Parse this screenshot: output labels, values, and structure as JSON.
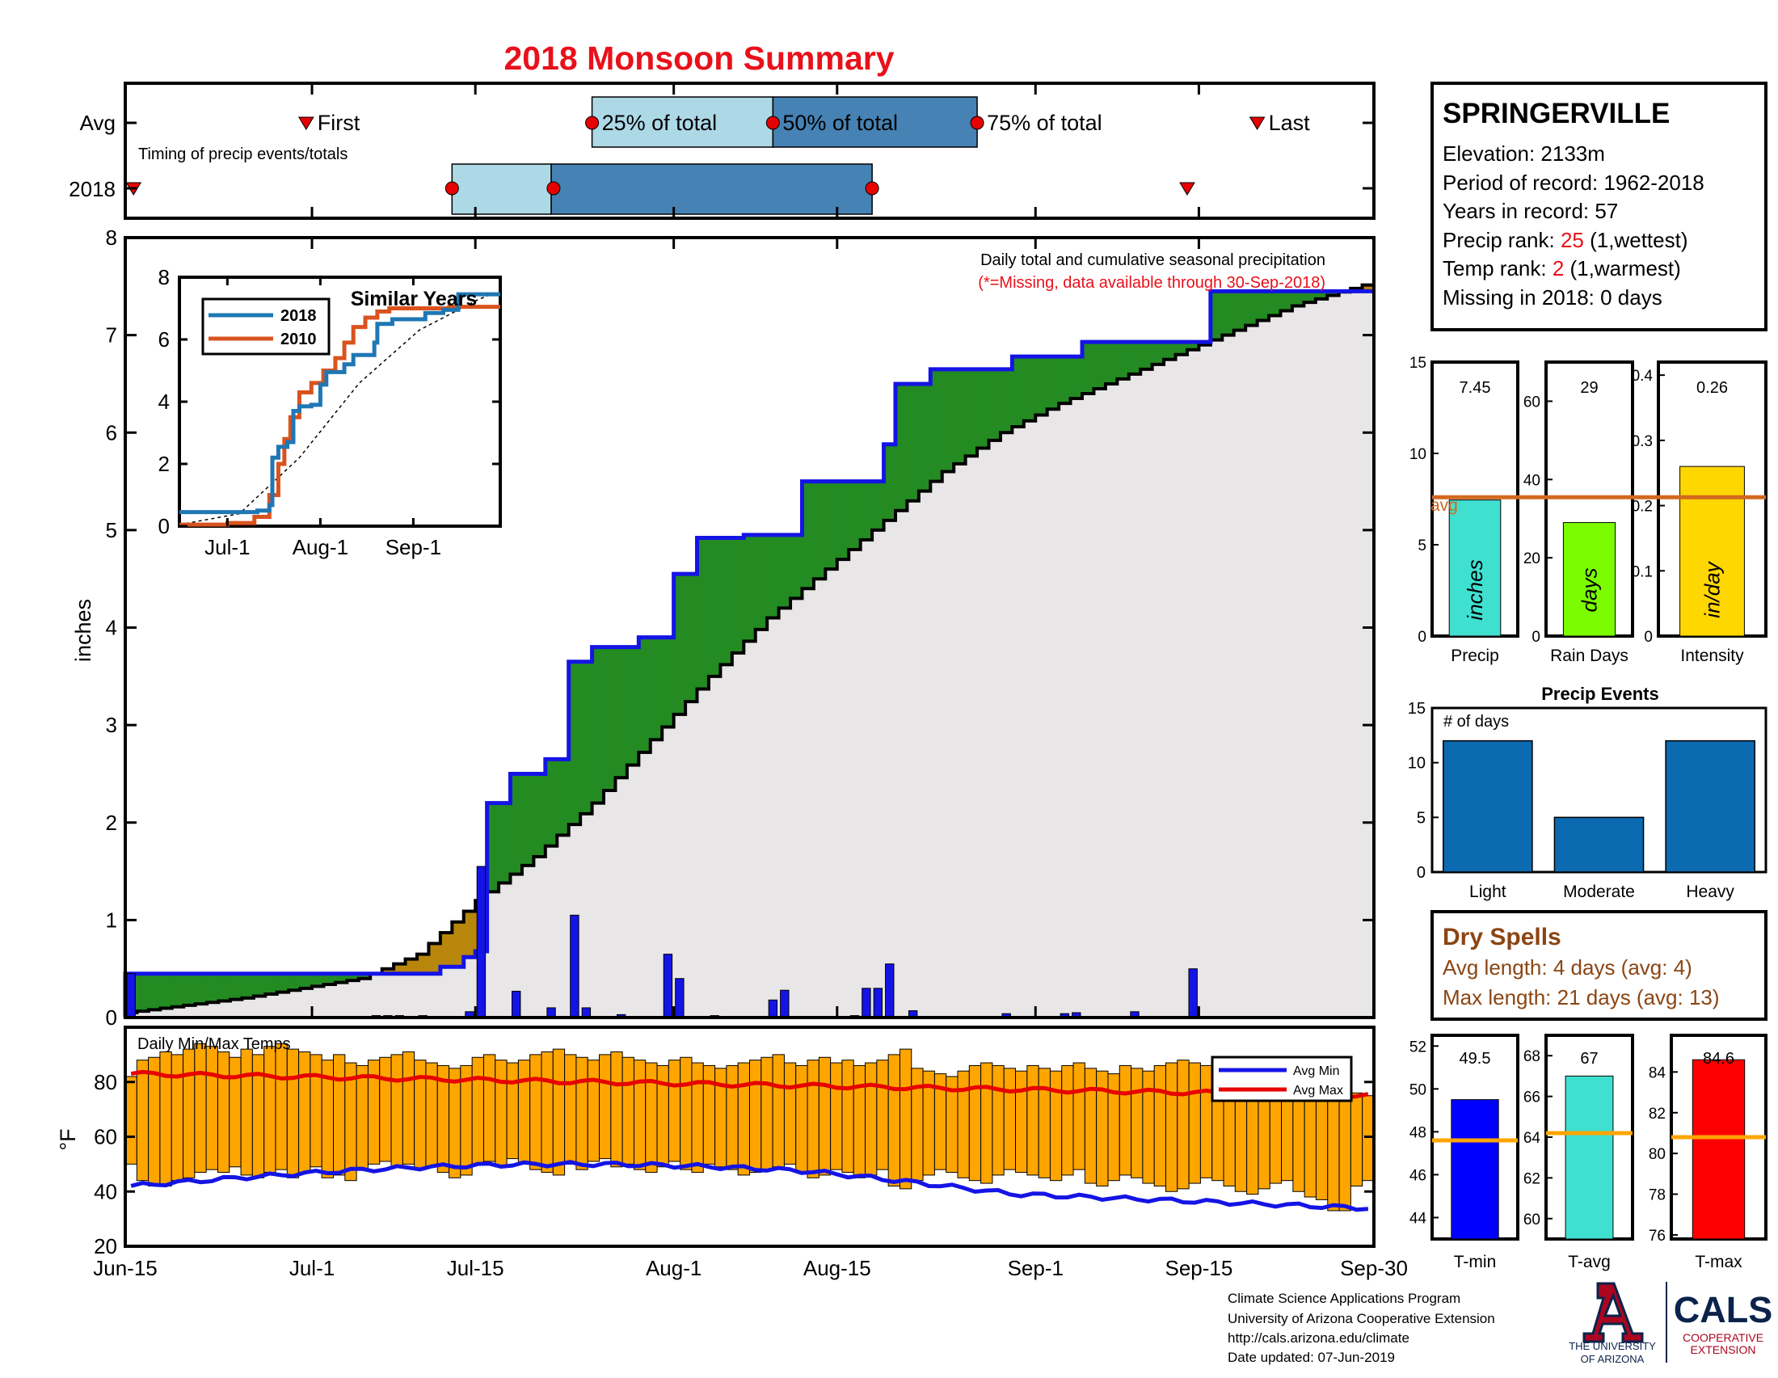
{
  "title": "2018 Monsoon Summary",
  "colors": {
    "title_red": "#e8111b",
    "wet_green": "#238b22",
    "dry_brown": "#b8860b",
    "cum_blue": "#1414e6",
    "avg_fill": "#e8e6e6",
    "timing_light": "#add8e6",
    "timing_dark": "#4682b4",
    "temp_bar": "#ffa500",
    "avg_red": "#e60000",
    "avg_orange": "#d2691e",
    "events_blue": "#0b6ab0"
  },
  "timing_panel": {
    "row_labels": [
      "Avg",
      "2018"
    ],
    "note": "Timing of precip events/totals",
    "markers": {
      "first": "First",
      "p25": "25% of total",
      "p50": "50% of total",
      "p75": "75% of total",
      "last": "Last"
    },
    "avg_days": {
      "first": 15.5,
      "p25": 40,
      "p50": 55.5,
      "p75": 73,
      "last": 97
    },
    "y2018_days": {
      "first": 0.5,
      "box_start": 28,
      "p25": 36.5,
      "p50": 36.7,
      "box_end": 64,
      "p75": 64,
      "last": 91
    }
  },
  "station": {
    "name": "SPRINGERVILLE",
    "elevation": "Elevation: 2133m",
    "period": "Period of record: 1962-2018",
    "years": "Years in record: 57",
    "precip_rank_label": "Precip rank:",
    "precip_rank_value": "25",
    "precip_rank_note": "(1,wettest)",
    "temp_rank_label": "Temp rank:",
    "temp_rank_value": "2",
    "temp_rank_note": "(1,warmest)",
    "missing": "Missing in 2018: 0 days"
  },
  "main_chart": {
    "ylabel": "inches",
    "yticks": [
      "0",
      "1",
      "2",
      "3",
      "4",
      "5",
      "6",
      "7",
      "8"
    ],
    "note1": "Daily total and cumulative seasonal precipitation",
    "note2": "(*=Missing, data available through 30-Sep-2018)",
    "xticks": [
      "Jun-15",
      "Jul-1",
      "Jul-15",
      "Aug-1",
      "Aug-15",
      "Sep-1",
      "Sep-15",
      "Sep-30"
    ],
    "xtick_days": [
      0,
      16,
      30,
      47,
      61,
      78,
      92,
      107
    ]
  },
  "inset": {
    "title": "Similar Years",
    "legend": [
      "2018",
      "2010"
    ],
    "yticks": [
      "0",
      "2",
      "4",
      "6",
      "8"
    ],
    "xticks": [
      "Jul-1",
      "Aug-1",
      "Sep-1"
    ],
    "colors": {
      "y2018": "#1f77b4",
      "y2010": "#d9531e"
    }
  },
  "temp_chart": {
    "label": "Daily Min/Max Temps",
    "ylabel": "°F",
    "yticks": [
      "20",
      "40",
      "60",
      "80"
    ],
    "legend": [
      "Avg Min",
      "Avg Max"
    ]
  },
  "summary_bars": {
    "precip": {
      "label": "Precip",
      "value": 7.45,
      "display": "7.45",
      "avg": 7.6,
      "ymax": 15,
      "unit": "inches",
      "color": "#40e0d0",
      "yticks": [
        "0",
        "5",
        "10",
        "15"
      ],
      "avg_label": "avg"
    },
    "rain_days": {
      "label": "Rain Days",
      "value": 29,
      "display": "29",
      "avg": 35.5,
      "ymax": 70,
      "unit": "days",
      "color": "#7cfc00",
      "yticks": [
        "0",
        "20",
        "40",
        "60"
      ]
    },
    "intensity": {
      "label": "Intensity",
      "value": 0.26,
      "display": "0.26",
      "avg": 0.215,
      "ymax": 0.42,
      "unit": "in/day",
      "color": "#ffd700",
      "yticks": [
        "0",
        "0.1",
        "0.2",
        "0.3",
        "0.4"
      ]
    }
  },
  "events": {
    "title": "Precip Events",
    "note": "# of days",
    "categories": [
      "Light",
      "Moderate",
      "Heavy"
    ],
    "values": [
      12,
      5,
      12
    ],
    "yticks": [
      "0",
      "5",
      "10",
      "15"
    ]
  },
  "dry_spells": {
    "title": "Dry Spells",
    "avg_line": "Avg length: 4 days (avg: 4)",
    "max_line": "Max length: 21 days (avg: 13)"
  },
  "temp_bars": {
    "tmin": {
      "label": "T-min",
      "value": 49.5,
      "display": "49.5",
      "avg": 47.6,
      "ymin": 43,
      "ymax": 52.5,
      "yticks": [
        "44",
        "46",
        "48",
        "50",
        "52"
      ],
      "color": "#0000ff"
    },
    "tavg": {
      "label": "T-avg",
      "value": 67,
      "display": "67",
      "avg": 64.2,
      "ymin": 59,
      "ymax": 69,
      "yticks": [
        "60",
        "62",
        "64",
        "66",
        "68"
      ],
      "color": "#40e0d0"
    },
    "tmax": {
      "label": "T-max",
      "value": 84.6,
      "display": "84.6",
      "avg": 80.8,
      "ymin": 75.8,
      "ymax": 85.8,
      "yticks": [
        "76",
        "78",
        "80",
        "82",
        "84"
      ],
      "color": "#ff0000"
    }
  },
  "footer": {
    "line1": "Climate Science Applications Program",
    "line2": "University of Arizona Cooperative Extension",
    "line3": "http://cals.arizona.edu/climate",
    "line4": " Date updated: 07-Jun-2019",
    "ua_text1": "THE UNIVERSITY",
    "ua_text2": "OF ARIZONA",
    "cals": "CALS",
    "cals_sub1": "COOPERATIVE",
    "cals_sub2": "EXTENSION"
  },
  "chart_data": [
    {
      "type": "area",
      "title": "Daily total and cumulative seasonal precipitation",
      "ylabel": "inches",
      "ylim": [
        0,
        8
      ],
      "x_range": [
        "Jun-15",
        "Sep-30"
      ],
      "series": [
        {
          "name": "",
          "kind": "cumulative_2018",
          "x_days": [
            0,
            2,
            26,
            27,
            29,
            30,
            31,
            33,
            36,
            38,
            40,
            44,
            47,
            49,
            53,
            58,
            64,
            65,
            66,
            69,
            71,
            75,
            76,
            82,
            86,
            88,
            92,
            93,
            96,
            107
          ],
          "y": [
            0.45,
            0.45,
            0.45,
            0.52,
            0.62,
            0.68,
            2.2,
            2.5,
            2.65,
            3.65,
            3.8,
            3.9,
            4.55,
            4.92,
            4.95,
            5.5,
            5.5,
            5.88,
            6.5,
            6.65,
            6.65,
            6.65,
            6.78,
            6.93,
            6.93,
            6.93,
            6.93,
            7.45,
            7.45,
            7.45
          ]
        },
        {
          "name": "",
          "kind": "average",
          "x_days": [
            0,
            10,
            20,
            25,
            30,
            35,
            40,
            45,
            50,
            55,
            60,
            65,
            70,
            75,
            80,
            85,
            90,
            95,
            100,
            107
          ],
          "y": [
            0.05,
            0.2,
            0.4,
            0.65,
            1.2,
            1.65,
            2.2,
            2.85,
            3.5,
            4.1,
            4.6,
            5.1,
            5.6,
            6.0,
            6.3,
            6.55,
            6.8,
            7.05,
            7.3,
            7.55
          ]
        },
        {
          "name": "",
          "kind": "daily_precip",
          "x_days": [
            0,
            21,
            22,
            23,
            25,
            29,
            30,
            33,
            36,
            38,
            39,
            42,
            46,
            47,
            50,
            55,
            56,
            62,
            63,
            64,
            65,
            67,
            75,
            80,
            81,
            86,
            91
          ],
          "y": [
            0.45,
            0.02,
            0.02,
            0.02,
            0.02,
            0.06,
            1.55,
            0.27,
            0.1,
            1.05,
            0.1,
            0.03,
            0.65,
            0.4,
            0.02,
            0.18,
            0.28,
            0.02,
            0.3,
            0.3,
            0.55,
            0.07,
            0.04,
            0.04,
            0.05,
            0.06,
            0.5
          ]
        }
      ]
    },
    {
      "type": "line",
      "title": "Similar Years",
      "xticks": [
        "Jul-1",
        "Aug-1",
        "Sep-1"
      ],
      "ylim": [
        0,
        8
      ],
      "series": [
        {
          "name": "2018",
          "x_days": [
            0,
            16,
            26,
            30,
            31,
            33,
            36,
            38,
            40,
            44,
            47,
            49,
            55,
            58,
            65,
            66,
            71,
            82,
            88,
            93,
            107
          ],
          "y": [
            0.45,
            0.45,
            0.5,
            0.68,
            2.2,
            2.55,
            2.7,
            3.7,
            3.85,
            3.9,
            4.55,
            4.95,
            5.2,
            5.5,
            5.9,
            6.5,
            6.65,
            6.85,
            6.95,
            7.45,
            7.45
          ]
        },
        {
          "name": "2010",
          "x_days": [
            0,
            16,
            25,
            30,
            33,
            35,
            37,
            40,
            44,
            48,
            52,
            55,
            58,
            62,
            66,
            70,
            80,
            90,
            107
          ],
          "y": [
            0.05,
            0.1,
            0.3,
            1.0,
            2.0,
            2.8,
            3.5,
            4.3,
            4.6,
            5.0,
            5.4,
            5.9,
            6.4,
            6.7,
            6.9,
            7.0,
            7.0,
            7.05,
            7.05
          ]
        },
        {
          "name": "",
          "kind": "average",
          "x_days": [
            0,
            20,
            40,
            60,
            80,
            100,
            107
          ],
          "y": [
            0.05,
            0.4,
            2.2,
            4.6,
            6.3,
            7.3,
            7.55
          ]
        }
      ]
    },
    {
      "type": "bar",
      "title": "Daily Min/Max Temps",
      "ylabel": "°F",
      "ylim": [
        20,
        100
      ],
      "min_base": [
        50,
        44,
        42,
        42,
        44,
        45,
        47,
        48,
        47,
        49,
        46,
        45,
        47,
        48,
        45,
        47,
        49,
        45,
        46,
        44,
        48,
        50,
        51,
        49,
        50,
        48,
        49,
        47,
        45,
        46,
        50,
        51,
        49,
        52,
        50,
        48,
        47,
        46,
        50,
        48,
        51,
        52,
        49,
        50,
        48,
        47,
        49,
        51,
        48,
        47,
        50,
        49,
        48,
        46,
        47,
        48,
        49,
        50,
        47,
        45,
        46,
        48,
        47,
        45,
        46,
        48,
        42,
        41,
        44,
        46,
        48,
        47,
        45,
        44,
        43,
        46,
        48,
        47,
        46,
        45,
        44,
        46,
        48,
        43,
        42,
        44,
        46,
        45,
        43,
        42,
        40,
        41,
        43,
        45,
        44,
        42,
        40,
        39,
        41,
        43,
        44,
        40,
        38,
        37,
        33,
        33,
        42,
        44
      ],
      "max_top": [
        82,
        88,
        89,
        91,
        90,
        92,
        94,
        93,
        91,
        89,
        92,
        90,
        93,
        94,
        92,
        91,
        90,
        88,
        90,
        87,
        86,
        88,
        89,
        90,
        91,
        88,
        87,
        86,
        85,
        86,
        89,
        90,
        88,
        87,
        88,
        90,
        91,
        92,
        90,
        89,
        88,
        90,
        91,
        89,
        88,
        87,
        86,
        88,
        89,
        87,
        86,
        85,
        86,
        87,
        88,
        89,
        90,
        87,
        86,
        88,
        89,
        87,
        88,
        86,
        87,
        88,
        90,
        92,
        85,
        84,
        83,
        82,
        84,
        86,
        87,
        86,
        85,
        84,
        86,
        85,
        84,
        86,
        87,
        85,
        84,
        83,
        86,
        85,
        84,
        86,
        87,
        88,
        87,
        86,
        85,
        87,
        86,
        85,
        87,
        86,
        85,
        84,
        83,
        84,
        82,
        80,
        76,
        75
      ]
    },
    {
      "type": "bar",
      "title": "Precip Events",
      "categories": [
        "Light",
        "Moderate",
        "Heavy"
      ],
      "values": [
        12,
        5,
        12
      ]
    }
  ]
}
